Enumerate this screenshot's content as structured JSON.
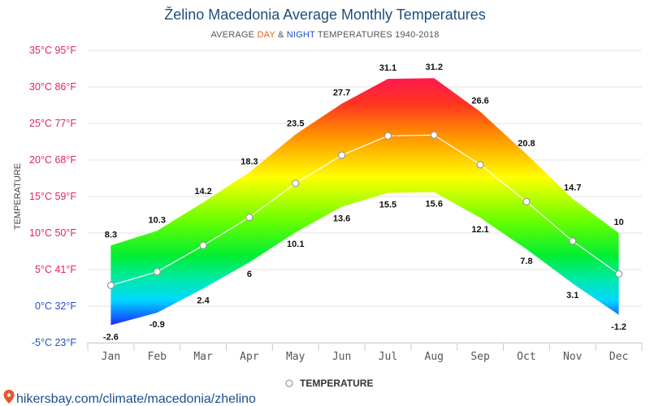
{
  "header": {
    "title": "Želino Macedonia Average Monthly Temperatures",
    "subtitle_prefix": "AVERAGE ",
    "subtitle_day": "DAY",
    "subtitle_amp": " & ",
    "subtitle_night": "NIGHT",
    "subtitle_suffix": " TEMPERATURES 1940-2018"
  },
  "colors": {
    "day": "#e8601c",
    "night": "#2250c8",
    "title": "#1d4f7a",
    "link": "#1a4f8f",
    "pin": "#e9562b"
  },
  "chart_data": {
    "type": "area",
    "categories": [
      "Jan",
      "Feb",
      "Mar",
      "Apr",
      "May",
      "Jun",
      "Jul",
      "Aug",
      "Sep",
      "Oct",
      "Nov",
      "Dec"
    ],
    "day": [
      8.3,
      10.3,
      14.2,
      18.3,
      23.5,
      27.7,
      31.1,
      31.2,
      26.6,
      20.8,
      14.7,
      10
    ],
    "night": [
      -2.6,
      -0.9,
      2.4,
      6,
      10.1,
      13.6,
      15.5,
      15.6,
      12.1,
      7.8,
      3.1,
      -1.2
    ],
    "series": [
      {
        "name": "TEMPERATURE",
        "values": [
          2.85,
          4.7,
          8.3,
          12.15,
          16.8,
          20.65,
          23.3,
          23.4,
          19.35,
          14.3,
          8.9,
          4.4
        ]
      }
    ],
    "yticks": [
      {
        "value": 35,
        "label": "35°C 95°F",
        "color": "#e0245e"
      },
      {
        "value": 30,
        "label": "30°C 86°F",
        "color": "#e0245e"
      },
      {
        "value": 25,
        "label": "25°C 77°F",
        "color": "#e0245e"
      },
      {
        "value": 20,
        "label": "20°C 68°F",
        "color": "#e0245e"
      },
      {
        "value": 15,
        "label": "15°C 59°F",
        "color": "#e0245e"
      },
      {
        "value": 10,
        "label": "10°C 50°F",
        "color": "#e0245e"
      },
      {
        "value": 5,
        "label": "5°C 41°F",
        "color": "#e0245e"
      },
      {
        "value": 0,
        "label": "0°C 32°F",
        "color": "#2250c8"
      },
      {
        "value": -5,
        "label": "-5°C 23°F",
        "color": "#2250c8"
      }
    ],
    "ylabel": "TEMPERATURE",
    "ylim": [
      -5,
      35
    ],
    "grid": true,
    "legend_position": "bottom-center"
  },
  "footer": {
    "url": "hikersbay.com/climate/macedonia/zhelino"
  }
}
